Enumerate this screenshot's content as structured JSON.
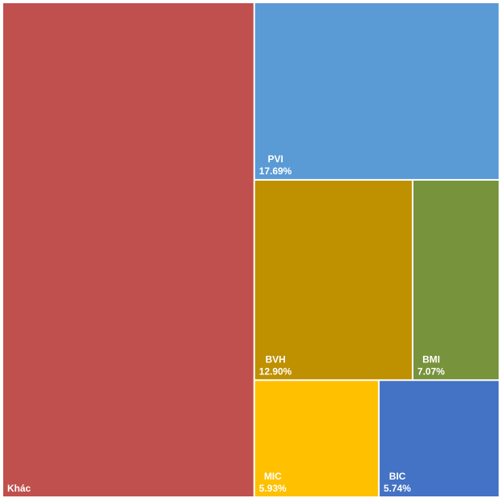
{
  "chart_data": {
    "type": "treemap",
    "categories": [
      "Khác",
      "PVI",
      "BVH",
      "BMI",
      "MIC",
      "BIC"
    ],
    "values": [
      50.67,
      17.69,
      12.9,
      7.07,
      5.93,
      5.74
    ],
    "value_labels": [
      null,
      "17.69%",
      "12.90%",
      "7.07%",
      "5.93%",
      "5.74%"
    ],
    "colors": [
      "#c0504d",
      "#5b9bd5",
      "#bf9000",
      "#77933c",
      "#ffc000",
      "#4472c4"
    ]
  }
}
